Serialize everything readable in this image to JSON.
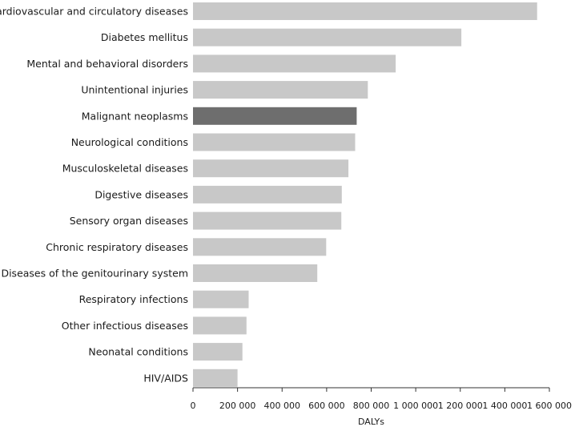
{
  "chart_data": {
    "type": "bar",
    "orientation": "horizontal",
    "title": "",
    "xlabel": "DALYs",
    "ylabel": "",
    "xlim": [
      0,
      1600000
    ],
    "grid": false,
    "highlight_category": "Malignant neoplasms",
    "colors": {
      "bar": "#c8c8c8",
      "highlight": "#6e6e6e",
      "axis": "#333333",
      "text": "#1a1a1a"
    },
    "categories": [
      "Cardiovascular and circulatory diseases",
      "Diabetes mellitus",
      "Mental and behavioral disorders",
      "Unintentional injuries",
      "Malignant neoplasms",
      "Neurological conditions",
      "Musculoskeletal diseases",
      "Digestive diseases",
      "Sensory organ diseases",
      "Chronic respiratory diseases",
      "Diseases of the genitourinary system",
      "Respiratory infections",
      "Other infectious diseases",
      "Neonatal conditions",
      "HIV/AIDS"
    ],
    "values": [
      1545000,
      1205000,
      910000,
      785000,
      735000,
      728000,
      698000,
      668000,
      666000,
      598000,
      558000,
      250000,
      240000,
      222000,
      200000
    ],
    "ticks": [
      0,
      200000,
      400000,
      600000,
      800000,
      1000000,
      1200000,
      1400000,
      1600000
    ],
    "tick_labels": [
      "0",
      "200 000",
      "400 000",
      "600 000",
      "800 000",
      "1 000 000",
      "1 200 000",
      "1 400 000",
      "1 600 000"
    ]
  }
}
